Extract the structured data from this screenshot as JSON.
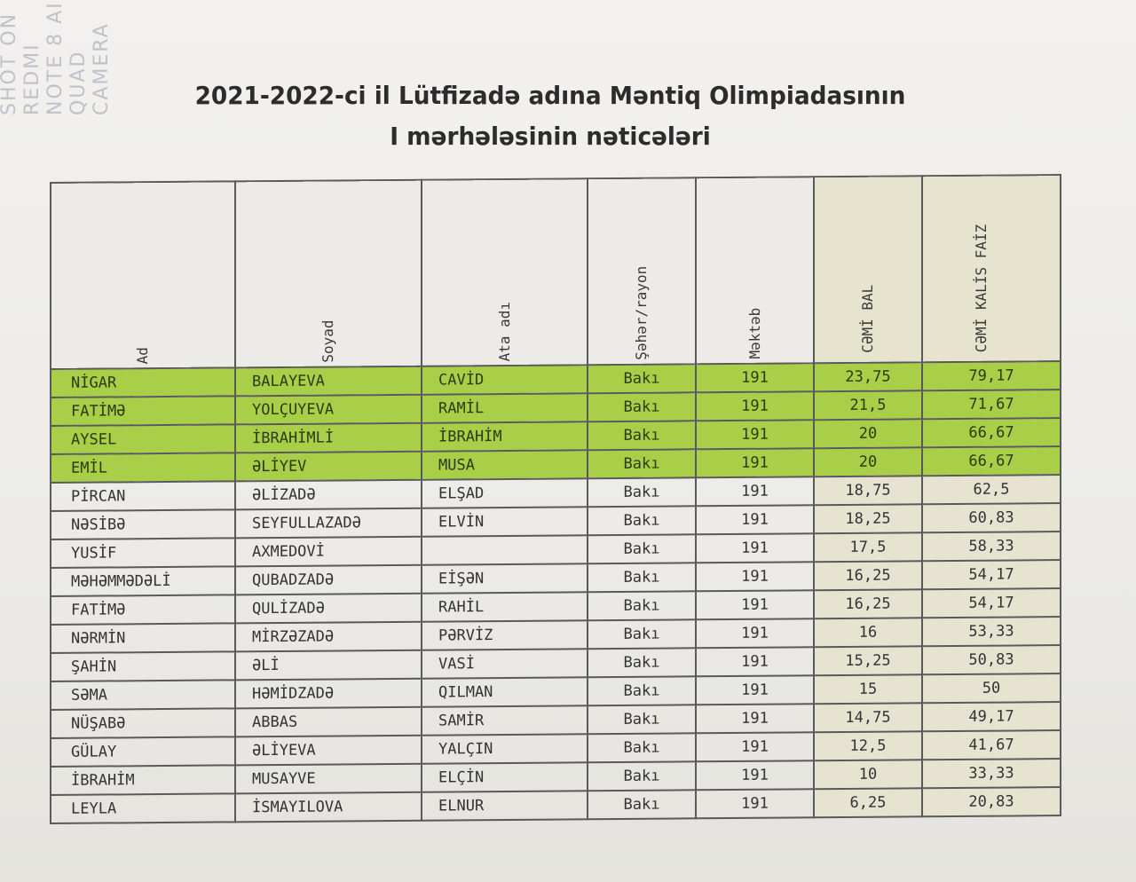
{
  "watermark": "SHOT ON REDMI NOTE 8 AI QUAD CAMERA",
  "title": {
    "line1": "2021-2022-ci il Lütfizadə adına Məntiq Olimpiadasının",
    "line2": "I mərhələsinin nəticələri"
  },
  "headers": [
    "Ad",
    "Soyad",
    "Ata adı",
    "Şəhər/rayon",
    "Məktəb",
    "CƏMİ BAL",
    "CƏMİ KALİS FAİZ"
  ],
  "highlight_color": "#a8cf47",
  "rows": [
    {
      "ad": "NİGAR",
      "soyad": "BALAYEVA",
      "ata": "CAVİD",
      "seher": "Bakı",
      "mekteb": "191",
      "bal": "23,75",
      "faiz": "79,17",
      "top": true
    },
    {
      "ad": "FATİMƏ",
      "soyad": "YOLÇUYEVA",
      "ata": "RAMİL",
      "seher": "Bakı",
      "mekteb": "191",
      "bal": "21,5",
      "faiz": "71,67",
      "top": true
    },
    {
      "ad": "AYSEL",
      "soyad": "İBRAHİMLİ",
      "ata": "İBRAHİM",
      "seher": "Bakı",
      "mekteb": "191",
      "bal": "20",
      "faiz": "66,67",
      "top": true
    },
    {
      "ad": "EMİL",
      "soyad": "ƏLİYEV",
      "ata": "MUSA",
      "seher": "Bakı",
      "mekteb": "191",
      "bal": "20",
      "faiz": "66,67",
      "top": true
    },
    {
      "ad": "PİRCAN",
      "soyad": "ƏLİZADƏ",
      "ata": "ELŞAD",
      "seher": "Bakı",
      "mekteb": "191",
      "bal": "18,75",
      "faiz": "62,5",
      "top": false
    },
    {
      "ad": "NƏSİBƏ",
      "soyad": "SEYFULLAZADƏ",
      "ata": "ELVİN",
      "seher": "Bakı",
      "mekteb": "191",
      "bal": "18,25",
      "faiz": "60,83",
      "top": false
    },
    {
      "ad": "YUSİF",
      "soyad": "AXMEDOVİ",
      "ata": "",
      "seher": "Bakı",
      "mekteb": "191",
      "bal": "17,5",
      "faiz": "58,33",
      "top": false
    },
    {
      "ad": "MƏHƏMMƏDƏLİ",
      "soyad": "QUBADZADƏ",
      "ata": "EİŞƏN",
      "seher": "Bakı",
      "mekteb": "191",
      "bal": "16,25",
      "faiz": "54,17",
      "top": false
    },
    {
      "ad": "FATİMƏ",
      "soyad": "QULİZADƏ",
      "ata": "RAHİL",
      "seher": "Bakı",
      "mekteb": "191",
      "bal": "16,25",
      "faiz": "54,17",
      "top": false
    },
    {
      "ad": "NƏRMİN",
      "soyad": "MİRZƏZADƏ",
      "ata": "PƏRVİZ",
      "seher": "Bakı",
      "mekteb": "191",
      "bal": "16",
      "faiz": "53,33",
      "top": false
    },
    {
      "ad": "ŞAHİN",
      "soyad": "ƏLİ",
      "ata": "VASİ",
      "seher": "Bakı",
      "mekteb": "191",
      "bal": "15,25",
      "faiz": "50,83",
      "top": false
    },
    {
      "ad": "SƏMA",
      "soyad": "HƏMİDZADƏ",
      "ata": "QILMAN",
      "seher": "Bakı",
      "mekteb": "191",
      "bal": "15",
      "faiz": "50",
      "top": false
    },
    {
      "ad": "NÜŞABƏ",
      "soyad": "ABBAS",
      "ata": "SAMİR",
      "seher": "Bakı",
      "mekteb": "191",
      "bal": "14,75",
      "faiz": "49,17",
      "top": false
    },
    {
      "ad": "GÜLAY",
      "soyad": "ƏLİYEVA",
      "ata": "YALÇIN",
      "seher": "Bakı",
      "mekteb": "191",
      "bal": "12,5",
      "faiz": "41,67",
      "top": false
    },
    {
      "ad": "İBRAHİM",
      "soyad": "MUSAYVE",
      "ata": "ELÇİN",
      "seher": "Bakı",
      "mekteb": "191",
      "bal": "10",
      "faiz": "33,33",
      "top": false
    },
    {
      "ad": "LEYLA",
      "soyad": "İSMAYILOVA",
      "ata": "ELNUR",
      "seher": "Bakı",
      "mekteb": "191",
      "bal": "6,25",
      "faiz": "20,83",
      "top": false
    }
  ]
}
